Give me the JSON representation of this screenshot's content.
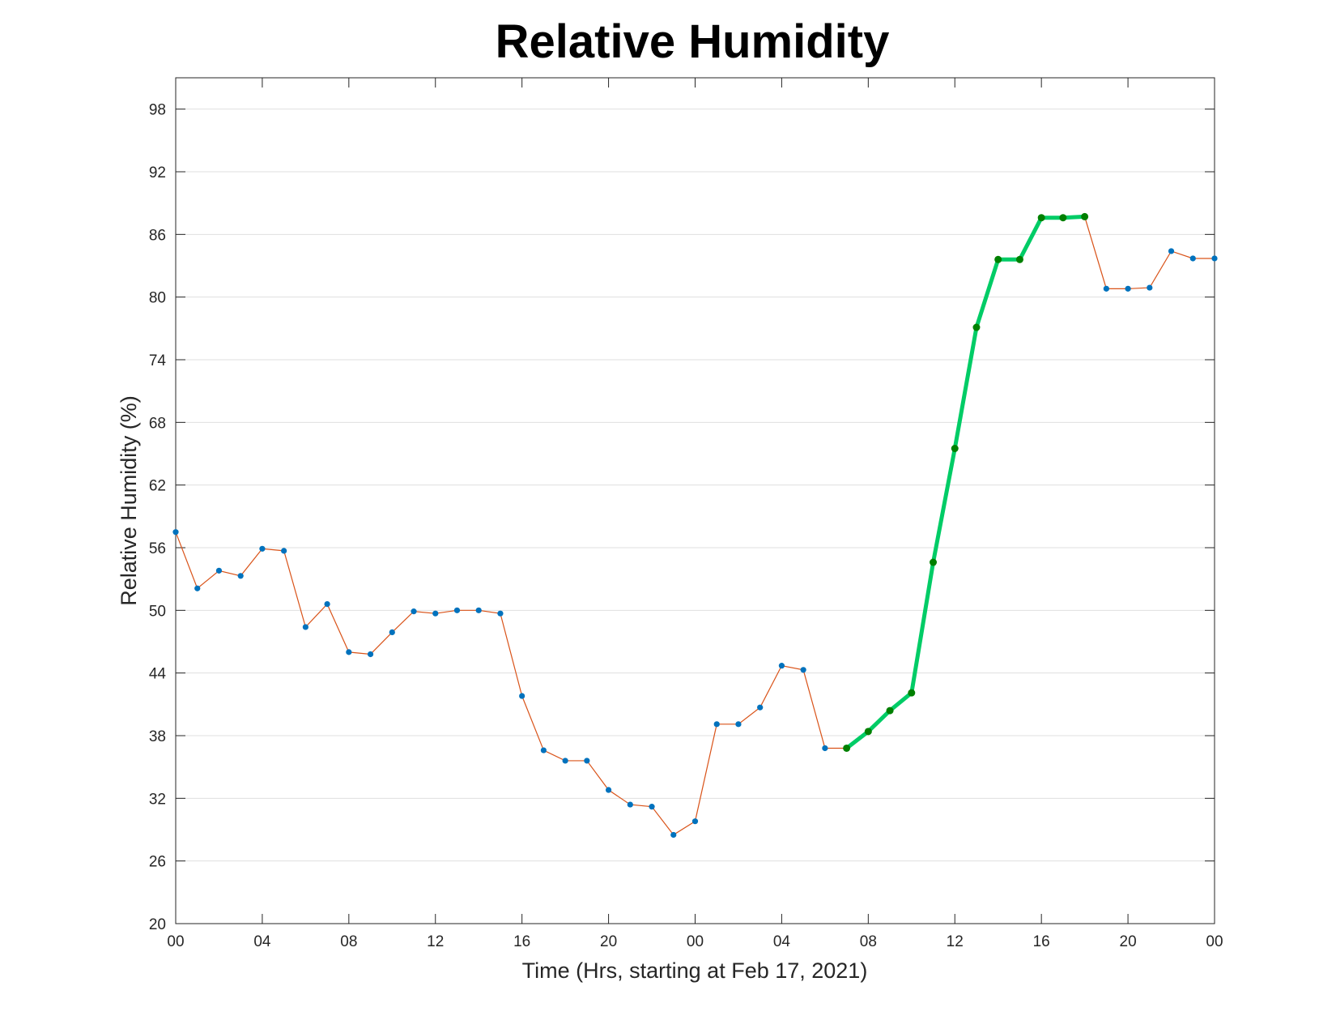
{
  "chart_data": {
    "type": "line",
    "title": "Relative Humidity",
    "xlabel": "Time (Hrs, starting at Feb 17, 2021)",
    "ylabel": "Relative Humidity (%)",
    "xlim": [
      0,
      48
    ],
    "ylim": [
      20,
      101
    ],
    "x_ticks": [
      {
        "x": 0,
        "label": "00"
      },
      {
        "x": 4,
        "label": "04"
      },
      {
        "x": 8,
        "label": "08"
      },
      {
        "x": 12,
        "label": "12"
      },
      {
        "x": 16,
        "label": "16"
      },
      {
        "x": 20,
        "label": "20"
      },
      {
        "x": 24,
        "label": "00"
      },
      {
        "x": 28,
        "label": "04"
      },
      {
        "x": 32,
        "label": "08"
      },
      {
        "x": 36,
        "label": "12"
      },
      {
        "x": 40,
        "label": "16"
      },
      {
        "x": 44,
        "label": "20"
      },
      {
        "x": 48,
        "label": "00"
      }
    ],
    "y_ticks": [
      20,
      26,
      32,
      38,
      44,
      50,
      56,
      62,
      68,
      74,
      80,
      86,
      92,
      98
    ],
    "grid": "horizontal",
    "x": [
      0,
      1,
      2,
      3,
      4,
      5,
      6,
      7,
      8,
      9,
      10,
      11,
      12,
      13,
      14,
      15,
      16,
      17,
      18,
      19,
      20,
      21,
      22,
      23,
      24,
      25,
      26,
      27,
      28,
      29,
      30,
      31,
      32,
      33,
      34,
      35,
      36,
      37,
      38,
      39,
      40,
      41,
      42,
      43,
      44,
      45,
      46,
      47,
      48
    ],
    "series": [
      {
        "values": [
          57.5,
          52.1,
          53.8,
          53.3,
          55.9,
          55.7,
          48.4,
          50.6,
          46.0,
          45.8,
          47.9,
          49.9,
          49.7,
          50.0,
          50.0,
          49.7,
          41.8,
          36.6,
          35.6,
          35.6,
          32.8,
          31.4,
          31.2,
          28.5,
          29.8,
          39.1,
          39.1,
          40.7,
          44.7,
          44.3,
          36.8,
          36.8,
          38.4,
          40.4,
          42.1,
          54.6,
          65.5,
          77.1,
          83.6,
          83.6,
          87.6,
          87.6,
          87.7,
          80.8,
          80.8,
          80.9,
          84.4,
          83.7,
          83.7
        ],
        "line_color": "#D95319",
        "marker_color": "#0072BD"
      },
      {
        "x_range": [
          31,
          42
        ],
        "line_color": "#00CC66",
        "marker_color": "#008000"
      }
    ]
  }
}
